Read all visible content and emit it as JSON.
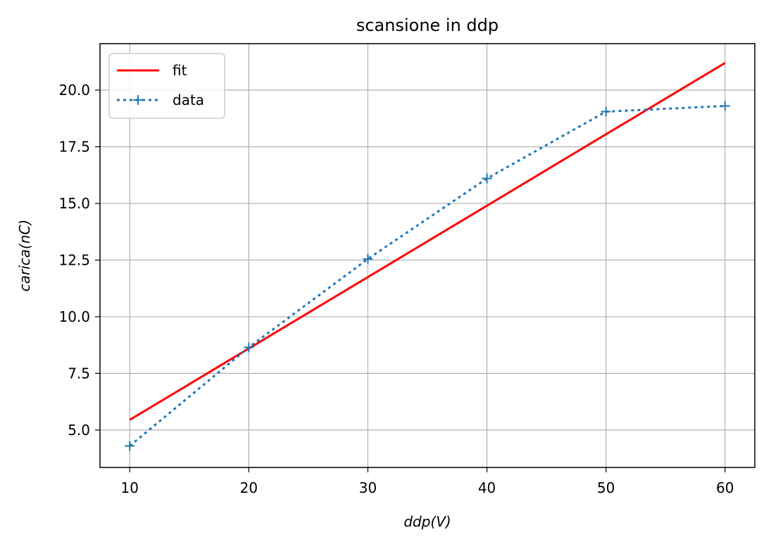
{
  "chart_data": {
    "type": "line",
    "title": "scansione in ddp",
    "xlabel": "ddp(V)",
    "ylabel": "carica(nC)",
    "xlim": [
      7.5,
      62.5
    ],
    "ylim": [
      3.35,
      22.05
    ],
    "xticks": [
      10,
      20,
      30,
      40,
      50,
      60
    ],
    "xtick_labels": [
      "10",
      "20",
      "30",
      "40",
      "50",
      "60"
    ],
    "yticks": [
      5.0,
      7.5,
      10.0,
      12.5,
      15.0,
      17.5,
      20.0
    ],
    "ytick_labels": [
      "5.0",
      "7.5",
      "10.0",
      "12.5",
      "15.0",
      "17.5",
      "20.0"
    ],
    "grid": true,
    "legend_position": "top-left",
    "series": [
      {
        "name": "fit",
        "style": "solid",
        "color": "#ff0000",
        "x": [
          10,
          60
        ],
        "y": [
          5.45,
          21.2
        ]
      },
      {
        "name": "data",
        "style": "dotted",
        "marker": "+",
        "color": "#1f77b4",
        "x": [
          10,
          20,
          30,
          40,
          50,
          60
        ],
        "y": [
          4.3,
          8.65,
          12.55,
          16.1,
          19.05,
          19.3
        ]
      }
    ]
  }
}
